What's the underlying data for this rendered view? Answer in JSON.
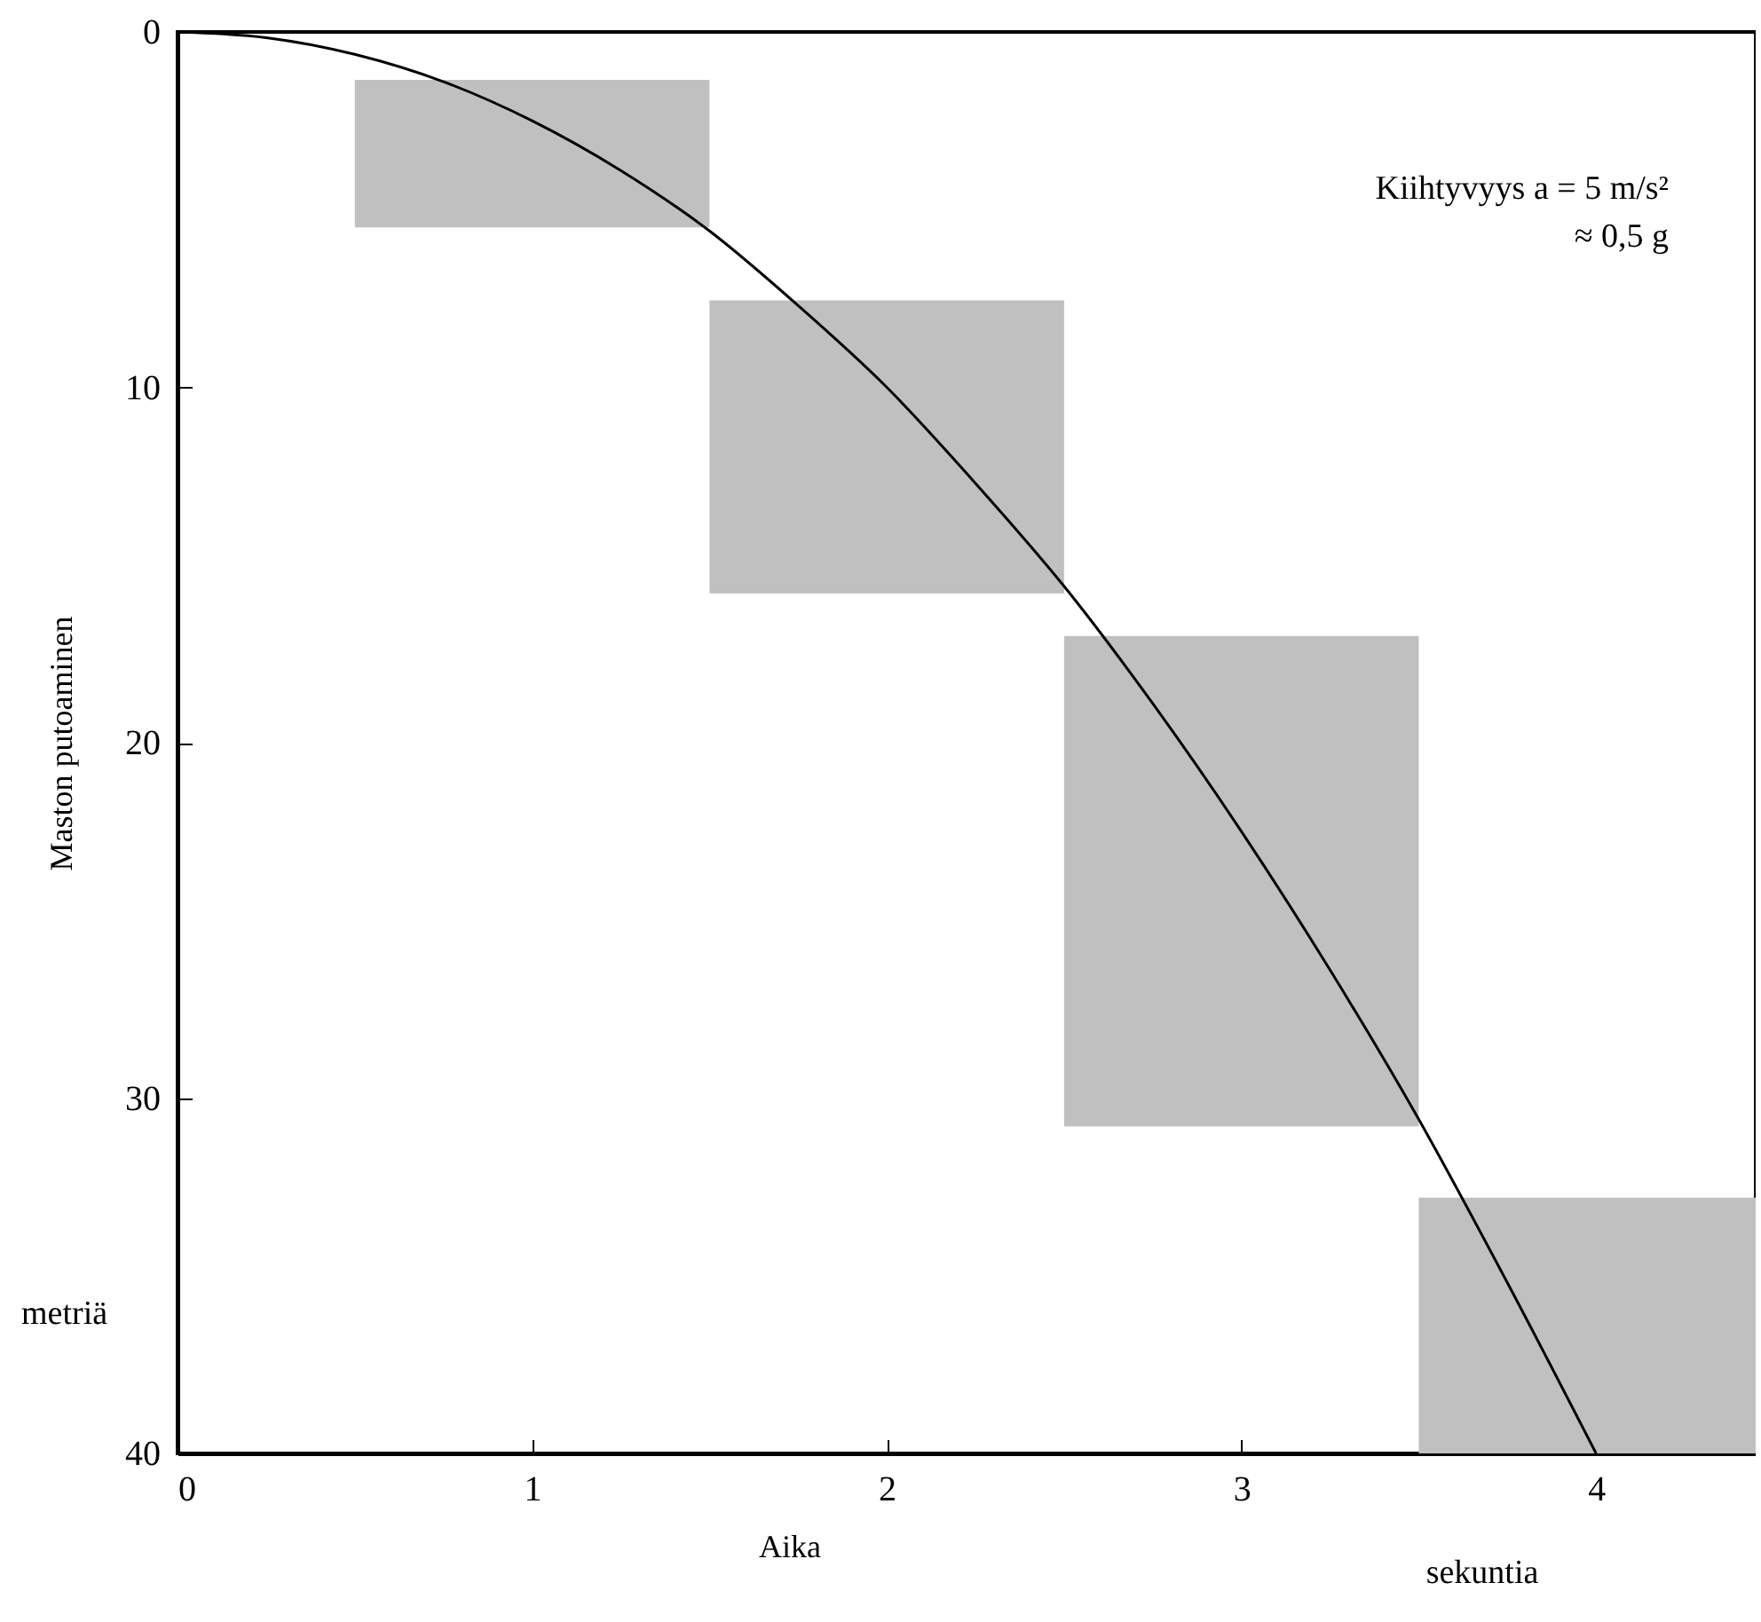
{
  "chart_data": {
    "type": "line",
    "xlabel": "Aika",
    "ylabel": "Maston putoaminen",
    "annotations": [
      "Kiihtyvyys a = 5 m/s²",
      "≈ 0,5 g",
      "metriä",
      "sekuntia"
    ],
    "xlim": [
      0,
      4.45
    ],
    "ylim": [
      40,
      0
    ],
    "xticks": [
      0,
      1,
      2,
      3,
      4
    ],
    "yticks": [
      0,
      10,
      20,
      30,
      40
    ],
    "grid": false,
    "series": [
      {
        "type": "bar",
        "color": "#c0c0c0",
        "x": [
          1,
          2,
          3,
          4
        ],
        "base": [
          1.35,
          7.55,
          17,
          32.8
        ],
        "values": [
          4.15,
          8.25,
          13.8,
          7.2
        ]
      },
      {
        "color": "#000000",
        "x": [
          0,
          0.25,
          0.5,
          0.75,
          1,
          1.25,
          1.5,
          1.75,
          2,
          2.25,
          2.5,
          2.75,
          3,
          3.25,
          3.5,
          3.75,
          4
        ],
        "values": [
          0,
          0.16,
          0.63,
          1.4,
          2.5,
          3.9,
          5.6,
          7.7,
          10,
          12.7,
          15.6,
          18.9,
          22.5,
          26.4,
          30.6,
          35.2,
          40
        ]
      }
    ]
  }
}
